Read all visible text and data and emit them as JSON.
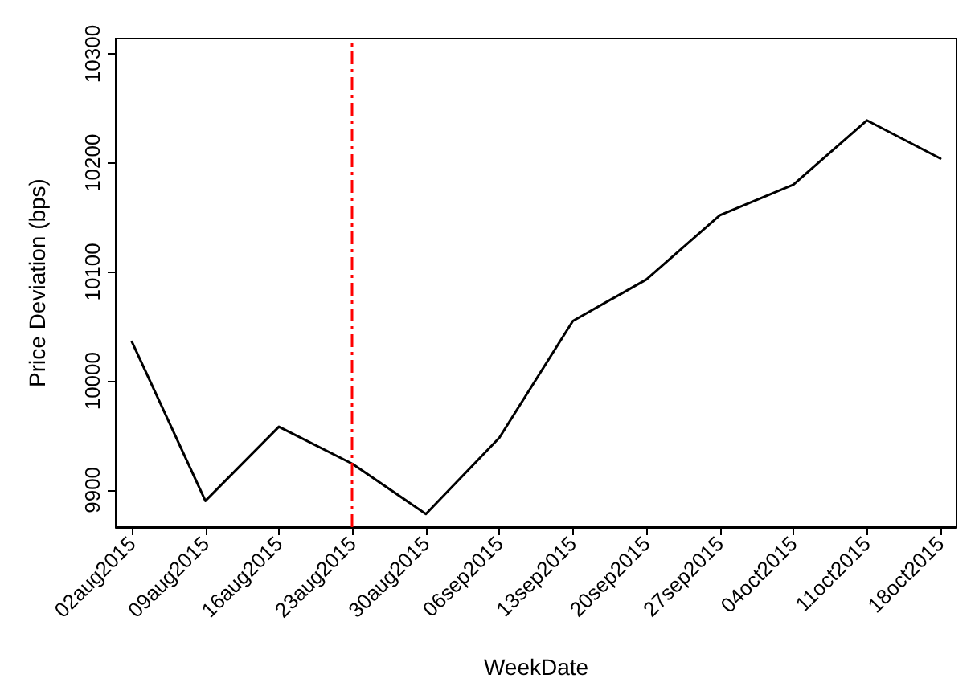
{
  "chart_data": {
    "type": "line",
    "xlabel": "WeekDate",
    "ylabel": "Price Deviation (bps)",
    "categories": [
      "02aug2015",
      "09aug2015",
      "16aug2015",
      "23aug2015",
      "30aug2015",
      "06sep2015",
      "13sep2015",
      "20sep2015",
      "27sep2015",
      "04oct2015",
      "11oct2015",
      "18oct2015"
    ],
    "series": [
      {
        "color": "#000000",
        "values": [
          10036,
          9890,
          9958,
          9924,
          9878,
          9948,
          10055,
          10093,
          10152,
          10180,
          10239,
          10204
        ]
      }
    ],
    "ylim": [
      9866,
      10314
    ],
    "yticks": [
      9900,
      10000,
      10100,
      10200,
      10300
    ],
    "ref_lines": [
      {
        "axis": "x",
        "value": "23aug2015",
        "color": "#ff0000",
        "line_style": "dashed"
      }
    ],
    "grid": false,
    "marker": "none",
    "line_style": "solid"
  }
}
